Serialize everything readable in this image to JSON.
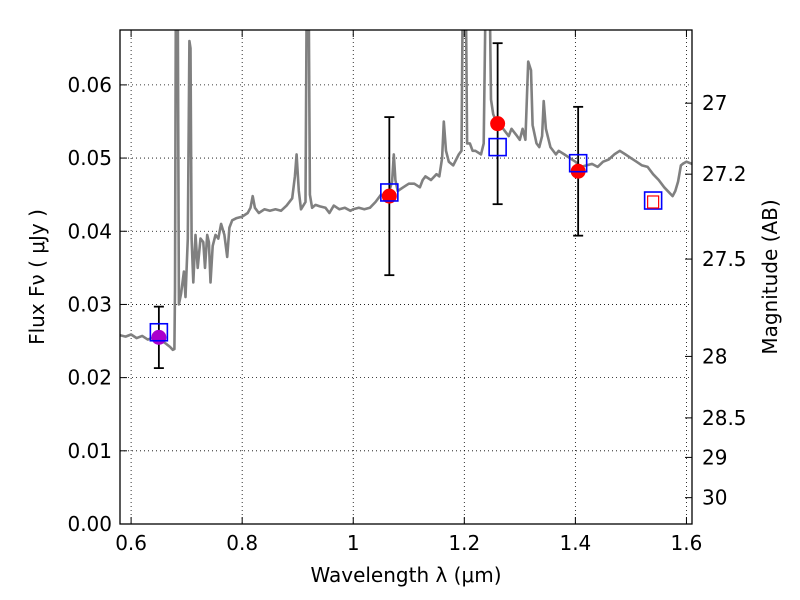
{
  "chart_data": {
    "type": "scatter",
    "xlabel": "Wavelength  λ (μm)",
    "ylabel": "Flux  Fν  ( μJy )",
    "ylabel_right": "Magnitude (AB)",
    "xlim": [
      0.58,
      1.61
    ],
    "ylim": [
      0.0,
      0.0675
    ],
    "grid": true,
    "x_ticks": [
      {
        "value": 0.6,
        "label": "0.6"
      },
      {
        "value": 0.8,
        "label": "0.8"
      },
      {
        "value": 1.0,
        "label": "1"
      },
      {
        "value": 1.2,
        "label": "1.2"
      },
      {
        "value": 1.4,
        "label": "1.4"
      },
      {
        "value": 1.6,
        "label": "1.6"
      }
    ],
    "y_ticks": [
      {
        "value": 0.0,
        "label": "0.00"
      },
      {
        "value": 0.01,
        "label": "0.01"
      },
      {
        "value": 0.02,
        "label": "0.02"
      },
      {
        "value": 0.03,
        "label": "0.03"
      },
      {
        "value": 0.04,
        "label": "0.04"
      },
      {
        "value": 0.05,
        "label": "0.05"
      },
      {
        "value": 0.06,
        "label": "0.06"
      }
    ],
    "right_ticks": [
      {
        "flux": 0.0575,
        "label": "27"
      },
      {
        "flux": 0.0478,
        "label": "27.2"
      },
      {
        "flux": 0.0362,
        "label": "27.5"
      },
      {
        "flux": 0.0229,
        "label": "28"
      },
      {
        "flux": 0.0145,
        "label": "28.5"
      },
      {
        "flux": 0.0091,
        "label": "29"
      },
      {
        "flux": 0.0036,
        "label": "30"
      }
    ],
    "series": [
      {
        "kind": "line",
        "color": "#808080",
        "points": [
          [
            0.58,
            0.0258
          ],
          [
            0.59,
            0.0256
          ],
          [
            0.6,
            0.0259
          ],
          [
            0.61,
            0.0254
          ],
          [
            0.62,
            0.0257
          ],
          [
            0.63,
            0.0252
          ],
          [
            0.64,
            0.0255
          ],
          [
            0.65,
            0.0251
          ],
          [
            0.66,
            0.0248
          ],
          [
            0.67,
            0.0242
          ],
          [
            0.675,
            0.0238
          ],
          [
            0.678,
            0.0239
          ],
          [
            0.679,
            0.032
          ],
          [
            0.6805,
            0.07
          ],
          [
            0.684,
            0.07
          ],
          [
            0.686,
            0.03
          ],
          [
            0.69,
            0.0315
          ],
          [
            0.695,
            0.0345
          ],
          [
            0.698,
            0.031
          ],
          [
            0.702,
            0.039
          ],
          [
            0.705,
            0.066
          ],
          [
            0.707,
            0.065
          ],
          [
            0.709,
            0.039
          ],
          [
            0.712,
            0.033
          ],
          [
            0.716,
            0.0395
          ],
          [
            0.72,
            0.035
          ],
          [
            0.725,
            0.039
          ],
          [
            0.73,
            0.0385
          ],
          [
            0.733,
            0.035
          ],
          [
            0.737,
            0.0395
          ],
          [
            0.74,
            0.0385
          ],
          [
            0.743,
            0.033
          ],
          [
            0.747,
            0.038
          ],
          [
            0.752,
            0.0395
          ],
          [
            0.757,
            0.039
          ],
          [
            0.762,
            0.041
          ],
          [
            0.768,
            0.0395
          ],
          [
            0.773,
            0.0365
          ],
          [
            0.777,
            0.0405
          ],
          [
            0.782,
            0.0415
          ],
          [
            0.79,
            0.0418
          ],
          [
            0.8,
            0.042
          ],
          [
            0.81,
            0.0425
          ],
          [
            0.815,
            0.0432
          ],
          [
            0.819,
            0.0448
          ],
          [
            0.823,
            0.0432
          ],
          [
            0.83,
            0.0425
          ],
          [
            0.84,
            0.043
          ],
          [
            0.85,
            0.0428
          ],
          [
            0.86,
            0.043
          ],
          [
            0.87,
            0.0428
          ],
          [
            0.88,
            0.0435
          ],
          [
            0.89,
            0.0445
          ],
          [
            0.895,
            0.0475
          ],
          [
            0.898,
            0.0505
          ],
          [
            0.902,
            0.0455
          ],
          [
            0.906,
            0.043
          ],
          [
            0.91,
            0.0435
          ],
          [
            0.914,
            0.044
          ],
          [
            0.916,
            0.07
          ],
          [
            0.92,
            0.07
          ],
          [
            0.922,
            0.045
          ],
          [
            0.926,
            0.0432
          ],
          [
            0.932,
            0.0436
          ],
          [
            0.94,
            0.0434
          ],
          [
            0.95,
            0.0432
          ],
          [
            0.957,
            0.0425
          ],
          [
            0.965,
            0.0435
          ],
          [
            0.975,
            0.043
          ],
          [
            0.985,
            0.0432
          ],
          [
            0.995,
            0.0428
          ],
          [
            1.0,
            0.043
          ],
          [
            1.01,
            0.0432
          ],
          [
            1.02,
            0.043
          ],
          [
            1.03,
            0.0432
          ],
          [
            1.04,
            0.044
          ],
          [
            1.05,
            0.045
          ],
          [
            1.06,
            0.0445
          ],
          [
            1.065,
            0.0455
          ],
          [
            1.07,
            0.0468
          ],
          [
            1.073,
            0.0505
          ],
          [
            1.076,
            0.047
          ],
          [
            1.08,
            0.0455
          ],
          [
            1.09,
            0.046
          ],
          [
            1.1,
            0.0465
          ],
          [
            1.11,
            0.0465
          ],
          [
            1.12,
            0.046
          ],
          [
            1.125,
            0.047
          ],
          [
            1.13,
            0.0475
          ],
          [
            1.14,
            0.047
          ],
          [
            1.15,
            0.0478
          ],
          [
            1.155,
            0.0475
          ],
          [
            1.16,
            0.05
          ],
          [
            1.163,
            0.055
          ],
          [
            1.167,
            0.051
          ],
          [
            1.172,
            0.0495
          ],
          [
            1.18,
            0.049
          ],
          [
            1.19,
            0.0505
          ],
          [
            1.195,
            0.051
          ],
          [
            1.197,
            0.07
          ],
          [
            1.203,
            0.07
          ],
          [
            1.205,
            0.052
          ],
          [
            1.21,
            0.052
          ],
          [
            1.215,
            0.051
          ],
          [
            1.22,
            0.051
          ],
          [
            1.23,
            0.0505
          ],
          [
            1.235,
            0.052
          ],
          [
            1.238,
            0.07
          ],
          [
            1.246,
            0.07
          ],
          [
            1.248,
            0.058
          ],
          [
            1.252,
            0.056
          ],
          [
            1.26,
            0.0545
          ],
          [
            1.27,
            0.054
          ],
          [
            1.28,
            0.053
          ],
          [
            1.285,
            0.054
          ],
          [
            1.295,
            0.053
          ],
          [
            1.3,
            0.0525
          ],
          [
            1.305,
            0.054
          ],
          [
            1.31,
            0.0525
          ],
          [
            1.315,
            0.0632
          ],
          [
            1.32,
            0.062
          ],
          [
            1.323,
            0.0545
          ],
          [
            1.33,
            0.052
          ],
          [
            1.335,
            0.0515
          ],
          [
            1.34,
            0.053
          ],
          [
            1.343,
            0.0578
          ],
          [
            1.347,
            0.054
          ],
          [
            1.355,
            0.0515
          ],
          [
            1.365,
            0.0505
          ],
          [
            1.37,
            0.051
          ],
          [
            1.38,
            0.0505
          ],
          [
            1.39,
            0.05
          ],
          [
            1.4,
            0.0495
          ],
          [
            1.41,
            0.0488
          ],
          [
            1.42,
            0.049
          ],
          [
            1.43,
            0.0492
          ],
          [
            1.44,
            0.0488
          ],
          [
            1.45,
            0.0495
          ],
          [
            1.46,
            0.0498
          ],
          [
            1.47,
            0.0505
          ],
          [
            1.48,
            0.051
          ],
          [
            1.49,
            0.0505
          ],
          [
            1.5,
            0.05
          ],
          [
            1.51,
            0.0495
          ],
          [
            1.52,
            0.049
          ],
          [
            1.53,
            0.0488
          ],
          [
            1.54,
            0.0478
          ],
          [
            1.55,
            0.047
          ],
          [
            1.56,
            0.046
          ],
          [
            1.57,
            0.0452
          ],
          [
            1.575,
            0.0448
          ],
          [
            1.58,
            0.0455
          ],
          [
            1.585,
            0.0468
          ],
          [
            1.59,
            0.049
          ],
          [
            1.595,
            0.0493
          ],
          [
            1.6,
            0.0495
          ],
          [
            1.61,
            0.0492
          ]
        ]
      },
      {
        "kind": "observed",
        "color": "#ff0000",
        "points": [
          {
            "x": 1.065,
            "y": 0.0448,
            "yerr": 0.0108
          },
          {
            "x": 1.26,
            "y": 0.0547,
            "yerr": 0.011
          },
          {
            "x": 1.405,
            "y": 0.0482,
            "yerr": 0.0088
          }
        ]
      },
      {
        "kind": "observed-blend",
        "color": "#aa00cc",
        "points": [
          {
            "x": 0.65,
            "y": 0.0255,
            "yerr": 0.0042
          }
        ]
      },
      {
        "kind": "model-squares",
        "color": "#0000ff",
        "points": [
          {
            "x": 0.65,
            "y": 0.0262
          },
          {
            "x": 1.065,
            "y": 0.0453
          },
          {
            "x": 1.26,
            "y": 0.0515
          },
          {
            "x": 1.405,
            "y": 0.0493
          },
          {
            "x": 1.54,
            "y": 0.0442
          }
        ]
      },
      {
        "kind": "open-red-square",
        "color": "#ff0000",
        "points": [
          {
            "x": 1.54,
            "y": 0.044
          }
        ]
      }
    ]
  }
}
